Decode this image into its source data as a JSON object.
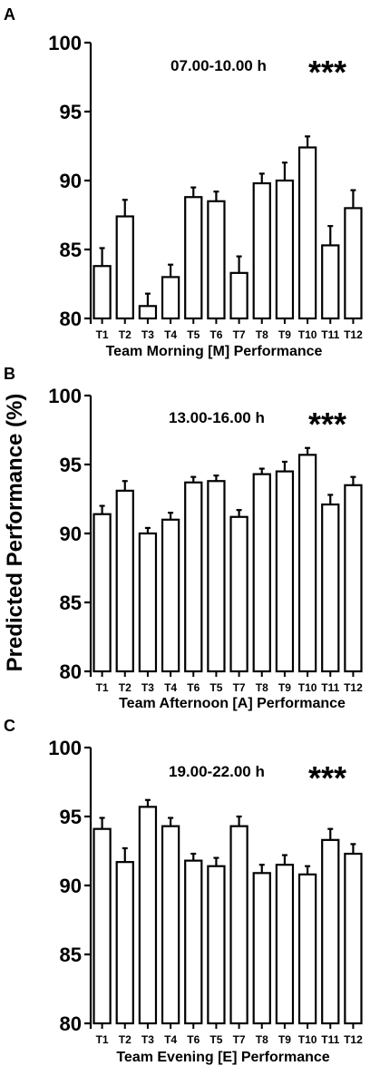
{
  "figure": {
    "ylabel": "Predicted Performance (%)"
  },
  "chart_data": [
    {
      "type": "bar",
      "panel": "A",
      "annotation": "07.00-10.00 h",
      "significance": "***",
      "xlabel": "Team Morning [M] Performance",
      "ylim": [
        80,
        100
      ],
      "yticks": [
        80,
        85,
        90,
        95,
        100
      ],
      "categories": [
        "T1",
        "T2",
        "T3",
        "T4",
        "T5",
        "T6",
        "T7",
        "T8",
        "T9",
        "T10",
        "T11",
        "T12"
      ],
      "values": [
        83.8,
        87.4,
        80.9,
        83.0,
        88.8,
        88.5,
        83.3,
        89.8,
        90.0,
        92.4,
        85.3,
        88.0
      ],
      "errors": [
        1.3,
        1.2,
        0.9,
        0.9,
        0.7,
        0.7,
        1.2,
        0.7,
        1.3,
        0.8,
        1.4,
        1.3
      ]
    },
    {
      "type": "bar",
      "panel": "B",
      "annotation": "13.00-16.00 h",
      "significance": "***",
      "xlabel": "Team Afternoon [A] Performance",
      "ylim": [
        80,
        100
      ],
      "yticks": [
        80,
        85,
        90,
        95,
        100
      ],
      "categories": [
        "T1",
        "T2",
        "T3",
        "T4",
        "T6",
        "T5",
        "T7",
        "T8",
        "T9",
        "T10",
        "T11",
        "T12"
      ],
      "values": [
        91.4,
        93.1,
        90.0,
        91.0,
        93.7,
        93.8,
        91.2,
        94.3,
        94.5,
        95.7,
        92.1,
        93.5
      ],
      "errors": [
        0.6,
        0.7,
        0.4,
        0.5,
        0.4,
        0.4,
        0.5,
        0.4,
        0.7,
        0.5,
        0.7,
        0.6
      ]
    },
    {
      "type": "bar",
      "panel": "C",
      "annotation": "19.00-22.00 h",
      "significance": "***",
      "xlabel": "Team Evening [E] Performance",
      "ylim": [
        80,
        100
      ],
      "yticks": [
        80,
        85,
        90,
        95,
        100
      ],
      "categories": [
        "T1",
        "T2",
        "T3",
        "T4",
        "T6",
        "T5",
        "T7",
        "T8",
        "T9",
        "T10",
        "T11",
        "T12"
      ],
      "values": [
        94.1,
        91.7,
        95.7,
        94.3,
        91.8,
        91.4,
        94.3,
        90.9,
        91.5,
        90.8,
        93.3,
        92.3
      ],
      "errors": [
        0.8,
        1.0,
        0.5,
        0.6,
        0.5,
        0.6,
        0.7,
        0.6,
        0.7,
        0.6,
        0.8,
        0.7
      ]
    }
  ]
}
